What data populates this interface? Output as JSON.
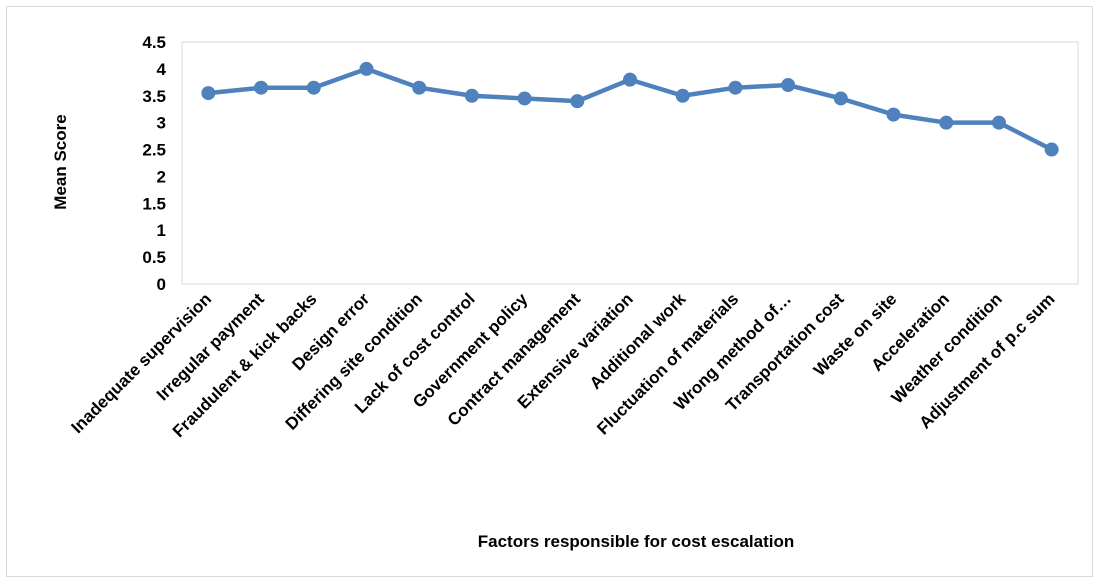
{
  "chart_data": {
    "type": "line",
    "title": "",
    "xlabel": "Factors responsible for cost escalation",
    "ylabel": "Mean Score",
    "ylim": [
      0,
      4.5
    ],
    "yticks": [
      0,
      0.5,
      1,
      1.5,
      2,
      2.5,
      3,
      3.5,
      4,
      4.5
    ],
    "ytick_labels": [
      "0",
      "0.5",
      "1",
      "1.5",
      "2",
      "2.5",
      "3",
      "3.5",
      "4",
      "4.5"
    ],
    "categories": [
      "Inadequate supervision",
      "Irregular payment",
      "Fraudulent & kick backs",
      "Design error",
      "Differing site condition",
      "Lack of cost control",
      "Government policy",
      "Contract management",
      "Extensive variation",
      "Additional work",
      "Fluctuation of materials",
      "Wrong method of…",
      "Transportation cost",
      "Waste on site",
      "Acceleration",
      "Weather condition",
      "Adjustment of p.c sum"
    ],
    "series": [
      {
        "values": [
          3.55,
          3.65,
          3.65,
          4.0,
          3.65,
          3.5,
          3.45,
          3.4,
          3.8,
          3.5,
          3.65,
          3.7,
          3.45,
          3.15,
          3.0,
          3.0,
          2.5
        ]
      }
    ],
    "line_color": "#4f81bd",
    "grid": false,
    "legend": "none"
  }
}
